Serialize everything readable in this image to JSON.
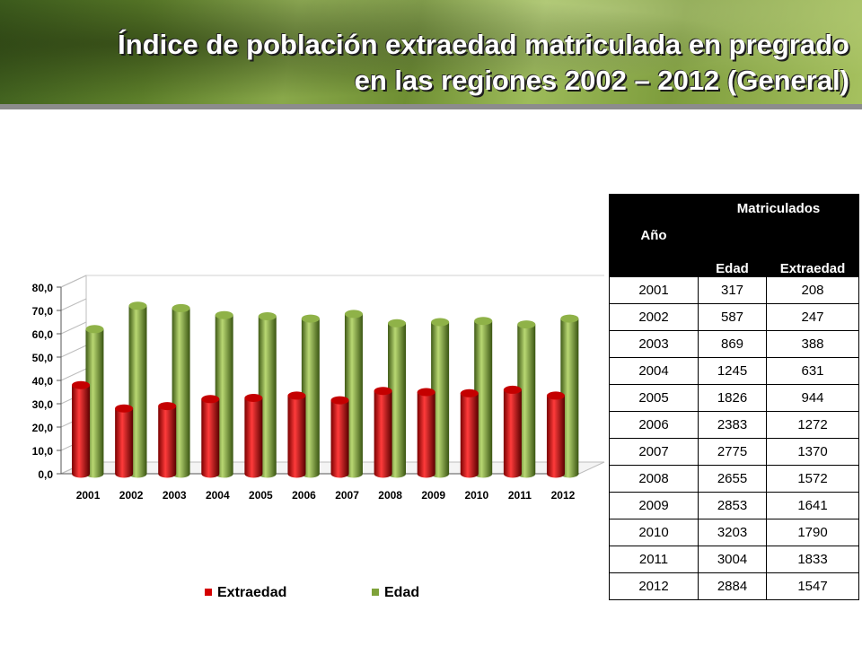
{
  "slide": {
    "title_line1": "Índice de población extraedad matriculada en pregrado",
    "title_line2": "en las regiones 2002 – 2012 (General)"
  },
  "colors": {
    "extraedad": "#d40000",
    "edad": "#7fa23a",
    "table_header": "#000000"
  },
  "chart_data": {
    "type": "bar",
    "categories": [
      "2001",
      "2002",
      "2003",
      "2004",
      "2005",
      "2006",
      "2007",
      "2008",
      "2009",
      "2010",
      "2011",
      "2012"
    ],
    "series": [
      {
        "name": "Extraedad",
        "values": [
          38.0,
          28.0,
          29.0,
          32.0,
          32.5,
          33.5,
          31.5,
          35.5,
          35.0,
          34.5,
          36.0,
          33.5
        ]
      },
      {
        "name": "Edad",
        "values": [
          62.0,
          72.0,
          71.0,
          68.0,
          67.5,
          66.5,
          68.5,
          64.5,
          65.0,
          65.5,
          64.0,
          66.5
        ]
      }
    ],
    "yticks": [
      "0,0",
      "10,0",
      "20,0",
      "30,0",
      "40,0",
      "50,0",
      "60,0",
      "70,0",
      "80,0"
    ],
    "ylim": [
      0,
      80
    ],
    "legend_position": "bottom",
    "bar_style": "3d-cylinder"
  },
  "table": {
    "header_year": "Año",
    "header_group": "Matriculados",
    "header_cols": [
      "Edad",
      "Extraedad"
    ],
    "rows": [
      [
        "2001",
        "317",
        "208"
      ],
      [
        "2002",
        "587",
        "247"
      ],
      [
        "2003",
        "869",
        "388"
      ],
      [
        "2004",
        "1245",
        "631"
      ],
      [
        "2005",
        "1826",
        "944"
      ],
      [
        "2006",
        "2383",
        "1272"
      ],
      [
        "2007",
        "2775",
        "1370"
      ],
      [
        "2008",
        "2655",
        "1572"
      ],
      [
        "2009",
        "2853",
        "1641"
      ],
      [
        "2010",
        "3203",
        "1790"
      ],
      [
        "2011",
        "3004",
        "1833"
      ],
      [
        "2012",
        "2884",
        "1547"
      ]
    ]
  }
}
